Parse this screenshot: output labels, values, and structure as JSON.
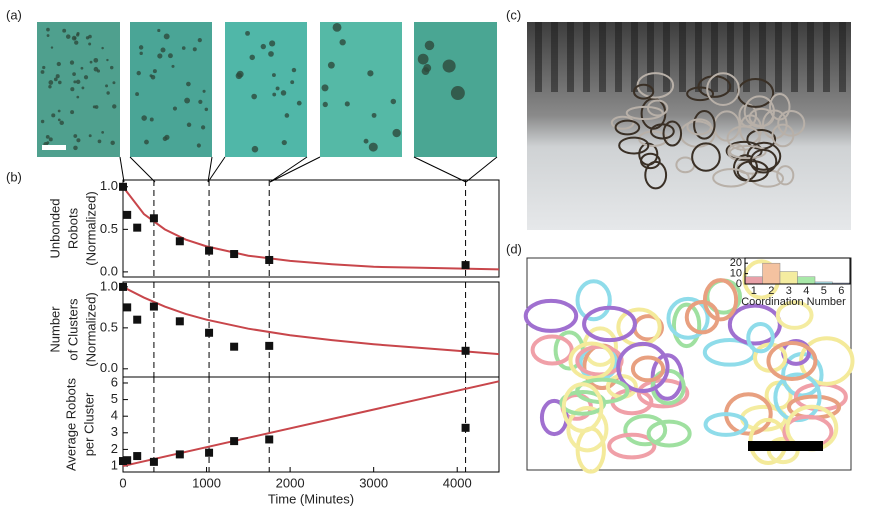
{
  "panel_labels": [
    "(a)",
    "(b)",
    "(c)",
    "(d)"
  ],
  "chart_data": [
    {
      "type": "scatter",
      "ylabel": [
        "Unbonded",
        "Robots",
        "(Normalized)"
      ],
      "x": [
        0,
        50,
        170,
        370,
        680,
        1030,
        1330,
        1750,
        4100
      ],
      "values": [
        1.0,
        0.67,
        0.52,
        0.63,
        0.36,
        0.25,
        0.21,
        0.14,
        0.08
      ],
      "color": "#111111",
      "fit": {
        "x": [
          0,
          250,
          500,
          750,
          1000,
          1500,
          2000,
          2500,
          3000,
          3500,
          4000,
          4500
        ],
        "values": [
          1.0,
          0.68,
          0.5,
          0.38,
          0.3,
          0.19,
          0.13,
          0.09,
          0.06,
          0.05,
          0.04,
          0.03
        ],
        "color": "#c8464b"
      },
      "dashed_x": [
        370,
        1030,
        1750,
        4100
      ],
      "xlim": [
        0,
        4500
      ],
      "ylim": [
        -0.06,
        1.08
      ],
      "yticks": [
        {
          "value": 0,
          "label": "0.0"
        },
        {
          "value": 0.5,
          "label": "0.5"
        },
        {
          "value": 1,
          "label": "1.0"
        }
      ]
    },
    {
      "type": "scatter",
      "ylabel": [
        "Number",
        "of Clusters",
        "(Normalized)"
      ],
      "x": [
        0,
        50,
        170,
        370,
        680,
        1030,
        1330,
        1750,
        4100
      ],
      "values": [
        1.0,
        0.75,
        0.6,
        0.76,
        0.58,
        0.44,
        0.27,
        0.28,
        0.22
      ],
      "color": "#111111",
      "fit": {
        "x": [
          0,
          250,
          500,
          750,
          1000,
          1500,
          2000,
          2500,
          3000,
          3500,
          4000,
          4500
        ],
        "values": [
          1.0,
          0.87,
          0.76,
          0.67,
          0.6,
          0.49,
          0.41,
          0.35,
          0.3,
          0.26,
          0.22,
          0.18
        ],
        "color": "#c8464b"
      },
      "dashed_x": [
        370,
        1030,
        1750,
        4100
      ],
      "xlim": [
        0,
        4500
      ],
      "ylim": [
        -0.1,
        1.06
      ],
      "yticks": [
        {
          "value": 0,
          "label": "0.0"
        },
        {
          "value": 0.5,
          "label": "0.5"
        },
        {
          "value": 1,
          "label": "1.0"
        }
      ]
    },
    {
      "type": "scatter",
      "ylabel": [
        "Average Robots",
        "per Cluster"
      ],
      "xlabel": "Time (Minutes)",
      "x": [
        0,
        50,
        170,
        370,
        680,
        1030,
        1330,
        1750,
        4100
      ],
      "values": [
        1.3,
        1.35,
        1.6,
        1.25,
        1.7,
        1.8,
        2.5,
        2.6,
        3.3
      ],
      "color": "#111111",
      "fit": {
        "x": [
          0,
          4500
        ],
        "values": [
          1.0,
          6.1
        ],
        "color": "#c8464b"
      },
      "dashed_x": [
        370,
        1030,
        1750,
        4100
      ],
      "xlim": [
        0,
        4500
      ],
      "ylim": [
        0.64,
        6.36
      ],
      "xticks": [
        0,
        1000,
        2000,
        3000,
        4000
      ],
      "yticks": [
        1,
        2,
        3,
        4,
        5,
        6
      ]
    },
    {
      "type": "bar",
      "xlabel": "Coordination Number",
      "categories": [
        "1",
        "2",
        "3",
        "4",
        "5",
        "6"
      ],
      "values": [
        7,
        20,
        12,
        7,
        2,
        1
      ],
      "colors": [
        "#e8a0a8",
        "#f4c2a0",
        "#f4eca0",
        "#a8e8a8",
        "#a8e0e8",
        "#a8b8f0"
      ],
      "ylim": [
        0,
        25
      ],
      "yticks": [
        0,
        10,
        20
      ]
    }
  ]
}
